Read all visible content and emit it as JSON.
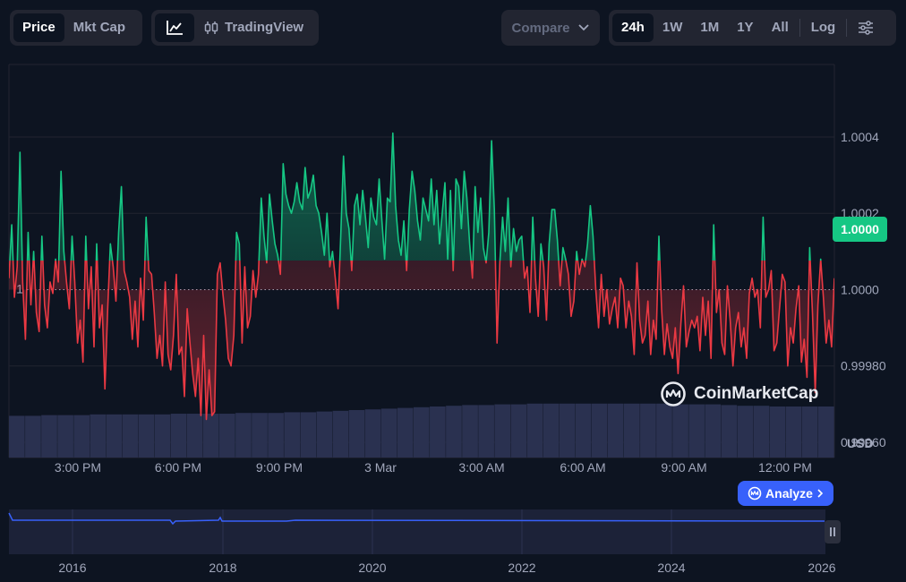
{
  "toolbar": {
    "view_tabs": [
      {
        "label": "Price",
        "active": true
      },
      {
        "label": "Mkt Cap",
        "active": false
      }
    ],
    "line_chart_icon": "line-chart-icon",
    "tradingview_label": "TradingView",
    "compare_label": "Compare",
    "ranges": [
      {
        "label": "24h",
        "active": true
      },
      {
        "label": "1W",
        "active": false
      },
      {
        "label": "1M",
        "active": false
      },
      {
        "label": "1Y",
        "active": false
      },
      {
        "label": "All",
        "active": false
      }
    ],
    "log_label": "Log",
    "settings_icon": "sliders-icon"
  },
  "watermark": "CoinMarketCap",
  "analyze_label": "Analyze",
  "current_price_label": "1.0000",
  "baseline_label": "1",
  "colors": {
    "up": "#16c784",
    "down": "#ea3943",
    "accent": "#3861fb",
    "background": "#0d1421"
  },
  "chart_data": {
    "type": "line",
    "currency_label": "USD",
    "baseline": 1.0,
    "ylim": [
      0.99956,
      1.00059
    ],
    "y_ticks": [
      {
        "value": 1.0004,
        "label": "1.0004"
      },
      {
        "value": 1.0002,
        "label": "1.0002"
      },
      {
        "value": 1.0,
        "label": "1.0000"
      },
      {
        "value": 0.9998,
        "label": "0.99980"
      },
      {
        "value": 0.9996,
        "label": "0.99960"
      }
    ],
    "x_ticks": [
      "3:00 PM",
      "6:00 PM",
      "9:00 PM",
      "3 Mar",
      "3:00 AM",
      "6:00 AM",
      "9:00 AM",
      "12:00 PM"
    ],
    "price": [
      1.00003,
      1.00017,
      0.99998,
      1.00006,
      1.00036,
      1.00002,
      0.99987,
      1.00015,
      0.99996,
      1.0001,
      0.99994,
      0.99989,
      1.00014,
      0.99996,
      0.9999,
      1.00002,
      0.99999,
      1.00008,
      1.00002,
      1.00031,
      1.0001,
      1.00002,
      0.99995,
      1.00014,
      1.00002,
      0.99986,
      0.99992,
      0.99981,
      1.00014,
      0.99995,
      1.00006,
      0.99985,
      1.00012,
      0.9999,
      0.99996,
      0.99974,
      0.99995,
      1.00012,
      1.00006,
      0.99997,
      1.00015,
      1.00027,
      1.00005,
      1.00002,
      0.99998,
      0.99987,
      0.99997,
      0.99985,
      1.00003,
      0.99992,
      1.00019,
      1.00005,
      1.00004,
      0.99994,
      0.99982,
      0.99988,
      0.9998,
      1.00002,
      0.99983,
      0.99979,
      0.99988,
      1.00004,
      0.99983,
      0.99985,
      0.99972,
      0.99995,
      0.99986,
      0.99978,
      0.99972,
      0.99982,
      0.99967,
      0.99988,
      0.99966,
      0.99979,
      0.99967,
      0.99968,
      1.00004,
      1.00007,
      0.99999,
      0.99992,
      0.99982,
      0.9998,
      0.99988,
      1.00015,
      1.00012,
      0.99986,
      1.00006,
      0.9999,
      0.99993,
      1.00005,
      0.99998,
      1.00004,
      1.00024,
      1.00014,
      1.00007,
      1.00025,
      1.00018,
      1.00012,
      1.00009,
      1.00004,
      1.00033,
      1.00025,
      1.00022,
      1.0002,
      1.00023,
      1.00028,
      1.00023,
      1.00021,
      1.00032,
      1.00024,
      1.00026,
      1.0003,
      1.00022,
      1.0002,
      1.00015,
      1.00009,
      1.0002,
      1.00006,
      1.0001,
      1.00003,
      0.99995,
      1.00014,
      1.00035,
      1.0002,
      1.00016,
      1.00005,
      1.00022,
      1.00025,
      1.00017,
      1.00026,
      1.00019,
      1.00011,
      1.00024,
      1.00019,
      1.00017,
      1.00029,
      1.00018,
      1.00008,
      1.00024,
      1.00023,
      1.00041,
      1.00022,
      1.00013,
      1.00009,
      1.00018,
      1.00005,
      1.00021,
      1.00031,
      1.00026,
      1.00018,
      1.00013,
      1.00024,
      1.00021,
      1.00018,
      1.00029,
      1.00017,
      1.00026,
      1.00012,
      1.0002,
      1.00028,
      1.00008,
      1.00026,
      1.00005,
      1.00029,
      1.00027,
      1.00016,
      1.00031,
      1.00024,
      1.00012,
      1.00003,
      1.00027,
      1.00015,
      1.00024,
      1.00011,
      1.00007,
      1.00015,
      1.00039,
      1.00021,
      0.99986,
      1.00007,
      1.00019,
      1.0001,
      1.00024,
      1.00006,
      1.00016,
      1.0001,
      1.00013,
      1.00014,
      1.00003,
      1.00006,
      0.99994,
      1.00019,
      1.00003,
      0.99993,
      1.00012,
      1.00006,
      0.99992,
      1.00012,
      1.00021,
      1.00021,
      1.00013,
      1.00001,
      1.00011,
      1.00008,
      1.00004,
      0.99993,
      0.99997,
      1.0001,
      1.00004,
      1.00008,
      1.00006,
      1.00012,
      1.00022,
      1.00014,
      1.0,
      0.9999,
      1.00004,
      0.99993,
      1.0,
      0.99991,
      0.99995,
      0.99998,
      0.9999,
      1.00003,
      1.00001,
      0.9999,
      0.99997,
      0.99993,
      0.99983,
      1.00007,
      0.99992,
      0.99986,
      0.99988,
      0.99997,
      0.99983,
      0.99992,
      0.99987,
      1.00014,
      0.99995,
      0.99983,
      0.99991,
      0.99985,
      0.99982,
      0.9999,
      0.99978,
      0.99991,
      1.00001,
      0.99985,
      0.99989,
      0.99992,
      0.9999,
      0.99993,
      0.99984,
      0.99998,
      0.99988,
      0.99997,
      0.99982,
      1.00017,
      0.99994,
      1.0,
      0.99986,
      0.99983,
      1.00001,
      0.99992,
      0.9998,
      0.9999,
      0.99994,
      0.99985,
      0.9999,
      0.99982,
      0.99999,
      1.00003,
      0.99998,
      1.0,
      0.9999,
      1.00019,
      0.99998,
      1.0,
      1.00005,
      0.99984,
      0.99986,
      0.99995,
      1.00004,
      1.00002,
      0.9998,
      0.9999,
      0.99986,
      0.99995,
      1.00001,
      0.99981,
      0.99987,
      0.99977,
      1.00011,
      0.99994,
      0.99973,
      0.99996,
      1.00008,
      0.99998,
      0.99986,
      0.99992,
      0.99985,
      1.00003
    ],
    "volume_relative": [
      0.58,
      0.58,
      0.59,
      0.59,
      0.59,
      0.6,
      0.6,
      0.6,
      0.6,
      0.6,
      0.61,
      0.61,
      0.61,
      0.61,
      0.62,
      0.62,
      0.62,
      0.63,
      0.63,
      0.64,
      0.65,
      0.66,
      0.67,
      0.68,
      0.69,
      0.7,
      0.71,
      0.72,
      0.73,
      0.73,
      0.74,
      0.74,
      0.75,
      0.75,
      0.75,
      0.75,
      0.75,
      0.75,
      0.75,
      0.75,
      0.75,
      0.74,
      0.74,
      0.74,
      0.73,
      0.72,
      0.72,
      0.71,
      0.71,
      0.71,
      0.71
    ],
    "overview": {
      "x_ticks": [
        "2016",
        "2018",
        "2020",
        "2022",
        "2024",
        "2026"
      ],
      "note": "all-time price navigator"
    }
  }
}
